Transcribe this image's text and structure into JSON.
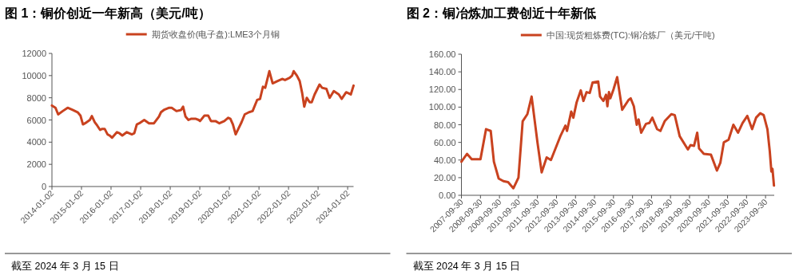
{
  "chart_data": [
    {
      "type": "line",
      "title": "图 1：铜价创近一年新高（美元/吨）",
      "legend": "top",
      "grid": false,
      "xlim": [
        "2014-01-02",
        "2024-03-15"
      ],
      "xticks": [
        "2014-01-02",
        "2015-01-02",
        "2016-01-02",
        "2017-01-02",
        "2018-01-02",
        "2019-01-02",
        "2020-01-02",
        "2021-01-02",
        "2022-01-02",
        "2023-01-02",
        "2024-01-02"
      ],
      "ylim": [
        0,
        12000
      ],
      "yticks": [
        0,
        2000,
        4000,
        6000,
        8000,
        10000,
        12000
      ],
      "annotations": [
        "截至 2024 年 3 月 15 日"
      ],
      "series": [
        {
          "name": "期货收盘价(电子盘):LME3个月铜",
          "color": "#c9421f",
          "x": [
            "2014-01-02",
            "2014-02-15",
            "2014-03-20",
            "2014-05-15",
            "2014-07-15",
            "2014-09-15",
            "2014-11-15",
            "2014-12-20",
            "2015-01-20",
            "2015-02-15",
            "2015-04-15",
            "2015-05-10",
            "2015-06-15",
            "2015-07-15",
            "2015-08-20",
            "2015-09-15",
            "2015-10-15",
            "2015-11-20",
            "2015-12-15",
            "2016-01-15",
            "2016-03-15",
            "2016-04-15",
            "2016-05-20",
            "2016-07-15",
            "2016-09-15",
            "2016-10-15",
            "2016-11-15",
            "2016-12-15",
            "2017-02-15",
            "2017-04-15",
            "2017-06-15",
            "2017-08-15",
            "2017-09-10",
            "2017-10-15",
            "2017-12-20",
            "2018-01-20",
            "2018-03-20",
            "2018-05-15",
            "2018-06-10",
            "2018-07-10",
            "2018-08-15",
            "2018-09-15",
            "2018-11-15",
            "2018-12-20",
            "2019-01-05",
            "2019-03-01",
            "2019-04-15",
            "2019-05-20",
            "2019-07-15",
            "2019-09-01",
            "2019-11-01",
            "2019-12-20",
            "2020-01-15",
            "2020-02-15",
            "2020-03-20",
            "2020-04-15",
            "2020-06-01",
            "2020-07-10",
            "2020-09-01",
            "2020-10-15",
            "2020-12-10",
            "2021-01-15",
            "2021-02-20",
            "2021-03-20",
            "2021-05-10",
            "2021-06-20",
            "2021-08-15",
            "2021-10-15",
            "2021-11-20",
            "2022-01-15",
            "2022-02-15",
            "2022-03-07",
            "2022-04-15",
            "2022-05-20",
            "2022-06-20",
            "2022-07-15",
            "2022-08-15",
            "2022-09-20",
            "2022-10-15",
            "2022-11-20",
            "2023-01-20",
            "2023-02-20",
            "2023-04-15",
            "2023-05-25",
            "2023-07-15",
            "2023-09-15",
            "2023-10-20",
            "2023-12-15",
            "2024-01-15",
            "2024-02-10",
            "2024-03-15"
          ],
          "values": [
            7300,
            7100,
            6500,
            6800,
            7100,
            6900,
            6700,
            6400,
            5600,
            5700,
            6000,
            6350,
            5800,
            5500,
            5100,
            5200,
            5200,
            4700,
            4600,
            4400,
            4900,
            4800,
            4600,
            4900,
            4700,
            4800,
            5600,
            5700,
            6000,
            5700,
            5700,
            6300,
            6700,
            6900,
            7100,
            7100,
            6800,
            6900,
            7200,
            6300,
            6000,
            6100,
            6100,
            6000,
            5900,
            6400,
            6400,
            5900,
            5900,
            5700,
            5900,
            6200,
            6100,
            5600,
            4700,
            5100,
            5800,
            6500,
            6700,
            6800,
            7800,
            7900,
            9000,
            8900,
            10400,
            9300,
            9500,
            9700,
            9600,
            9800,
            10000,
            10400,
            10000,
            9500,
            8400,
            7200,
            8000,
            7600,
            7600,
            8300,
            9200,
            8900,
            8800,
            8000,
            8600,
            8300,
            7900,
            8500,
            8400,
            8300,
            9100
          ]
        }
      ]
    },
    {
      "type": "line",
      "title": "图 2：铜冶炼加工费创近十年新低",
      "legend": "top",
      "grid": false,
      "xlim": [
        "2007-09-30",
        "2024-03-15"
      ],
      "xticks": [
        {
          "value": "2007-09-30",
          "label": "2007-09-30"
        },
        {
          "value": "2008-09-30",
          "label": "2008-09-30"
        },
        {
          "value": "2009-09-30",
          "label": "2009-09-30"
        },
        {
          "value": "2010-09-30",
          "label": "2010-09-30"
        },
        {
          "value": "2011-09-30",
          "label": "2011-09-30"
        },
        {
          "value": "2012-09-30",
          "label": "2012-09-30"
        },
        {
          "value": "2013-09-30",
          "label": "2013-09-30"
        },
        {
          "value": "2014-09-30",
          "label": "2014-09-30"
        },
        {
          "value": "2015-09-30",
          "label": "2015-09-30"
        },
        {
          "value": "2016-09-30",
          "label": "2016-09-30"
        },
        {
          "value": "2017-09-30",
          "label": "2017-09-30"
        },
        {
          "value": "2018-09-30",
          "label": "2018-09-30"
        },
        {
          "value": "2019-09-30",
          "label": "2019-09-30"
        },
        {
          "value": "2020-09-30",
          "label": "2020-09-30"
        },
        {
          "value": "2021-09-30",
          "label": "2021-09-30"
        },
        {
          "value": "2022-09-30",
          "label": "2022-09-30"
        },
        {
          "value": "2023-09-30",
          "label": "2023-09-30"
        }
      ],
      "ylim": [
        0,
        160
      ],
      "yticks": [
        {
          "value": 0,
          "label": "0.00"
        },
        {
          "value": 20,
          "label": "20.00"
        },
        {
          "value": 40,
          "label": "40.00"
        },
        {
          "value": 60,
          "label": "60.00"
        },
        {
          "value": 80,
          "label": "80.00"
        },
        {
          "value": 100,
          "label": "100.00"
        },
        {
          "value": 120,
          "label": "120.00"
        },
        {
          "value": 140,
          "label": "140.00"
        },
        {
          "value": 160,
          "label": "160.00"
        }
      ],
      "annotations": [
        "截至 2024 年 3 月 15 日"
      ],
      "series": [
        {
          "name": "中国:现货粗炼费(TC):铜冶炼厂（美元/干吨)",
          "color": "#c9421f",
          "x": [
            "2007-09-30",
            "2008-01-15",
            "2008-04-15",
            "2008-09-30",
            "2009-01-15",
            "2009-04-15",
            "2009-06-15",
            "2009-09-15",
            "2009-12-15",
            "2010-03-15",
            "2010-06-25",
            "2010-09-30",
            "2010-12-20",
            "2011-03-20",
            "2011-06-10",
            "2011-09-30",
            "2011-12-20",
            "2012-03-25",
            "2012-06-15",
            "2012-12-20",
            "2013-03-20",
            "2013-04-20",
            "2013-07-10",
            "2013-08-20",
            "2013-10-20",
            "2014-01-10",
            "2014-03-01",
            "2014-05-01",
            "2014-07-01",
            "2014-08-25",
            "2014-12-10",
            "2015-01-15",
            "2015-03-20",
            "2015-05-10",
            "2015-06-05",
            "2015-07-05",
            "2015-08-01",
            "2015-09-30",
            "2015-12-10",
            "2016-03-15",
            "2016-07-15",
            "2016-08-25",
            "2016-10-25",
            "2016-12-20",
            "2017-01-25",
            "2017-03-15",
            "2017-06-15",
            "2017-08-20",
            "2017-10-15",
            "2018-01-15",
            "2018-03-20",
            "2018-06-10",
            "2018-10-15",
            "2018-12-20",
            "2019-03-25",
            "2019-08-30",
            "2019-10-20",
            "2019-12-25",
            "2020-02-25",
            "2020-04-01",
            "2020-07-01",
            "2020-11-15",
            "2021-03-10",
            "2021-05-15",
            "2021-07-20",
            "2021-10-20",
            "2022-01-20",
            "2022-04-20",
            "2022-07-15",
            "2022-10-15",
            "2023-01-15",
            "2023-04-01",
            "2023-06-20",
            "2023-08-25",
            "2023-11-05",
            "2023-12-20",
            "2024-01-20",
            "2024-02-10",
            "2024-03-10"
          ],
          "values": [
            38,
            47,
            41,
            41,
            75,
            73,
            38,
            19,
            16,
            15,
            8,
            20,
            84,
            92,
            112,
            60,
            26,
            43,
            40,
            68,
            79,
            73,
            95,
            88,
            105,
            119,
            107,
            117,
            116,
            128,
            129,
            112,
            107,
            114,
            101,
            117,
            110,
            120,
            134,
            97,
            108,
            110,
            101,
            80,
            86,
            71,
            81,
            82,
            88,
            75,
            73,
            84,
            92,
            91,
            67,
            52,
            57,
            56,
            71,
            53,
            47,
            46,
            28,
            37,
            60,
            63,
            80,
            71,
            82,
            90,
            75,
            88,
            93,
            91,
            75,
            50,
            27,
            30,
            11
          ]
        }
      ]
    }
  ]
}
